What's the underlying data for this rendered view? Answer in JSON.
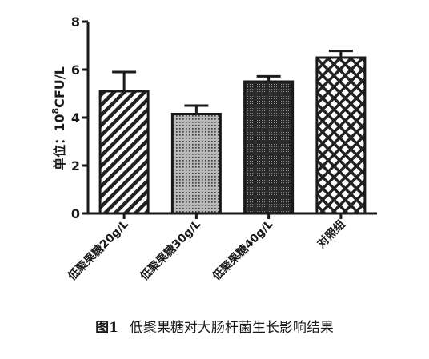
{
  "chart_data": {
    "type": "bar",
    "categories": [
      "低聚果糖20g/L",
      "低聚果糖30g/L",
      "低聚果糖40g/L",
      "对照组"
    ],
    "values": [
      5.1,
      4.15,
      5.5,
      6.5
    ],
    "errors": [
      0.8,
      0.35,
      0.22,
      0.28
    ],
    "patterns": [
      "diagonal-stripes",
      "fine-dots",
      "dense-dots",
      "crosshatch"
    ],
    "ylabel_prefix": "单位：10",
    "ylabel_sup": "8",
    "ylabel_suffix": "CFU/L",
    "ylim": [
      0,
      8
    ],
    "yticks": [
      "0",
      "2",
      "4",
      "6",
      "8"
    ],
    "grid": false,
    "legend": "none",
    "bar_color": "#ffffff",
    "stroke_color": "#1a1a1a"
  },
  "caption": {
    "figure_number": "图1",
    "title": "低聚果糖对大肠杆菌生长影响结果"
  }
}
